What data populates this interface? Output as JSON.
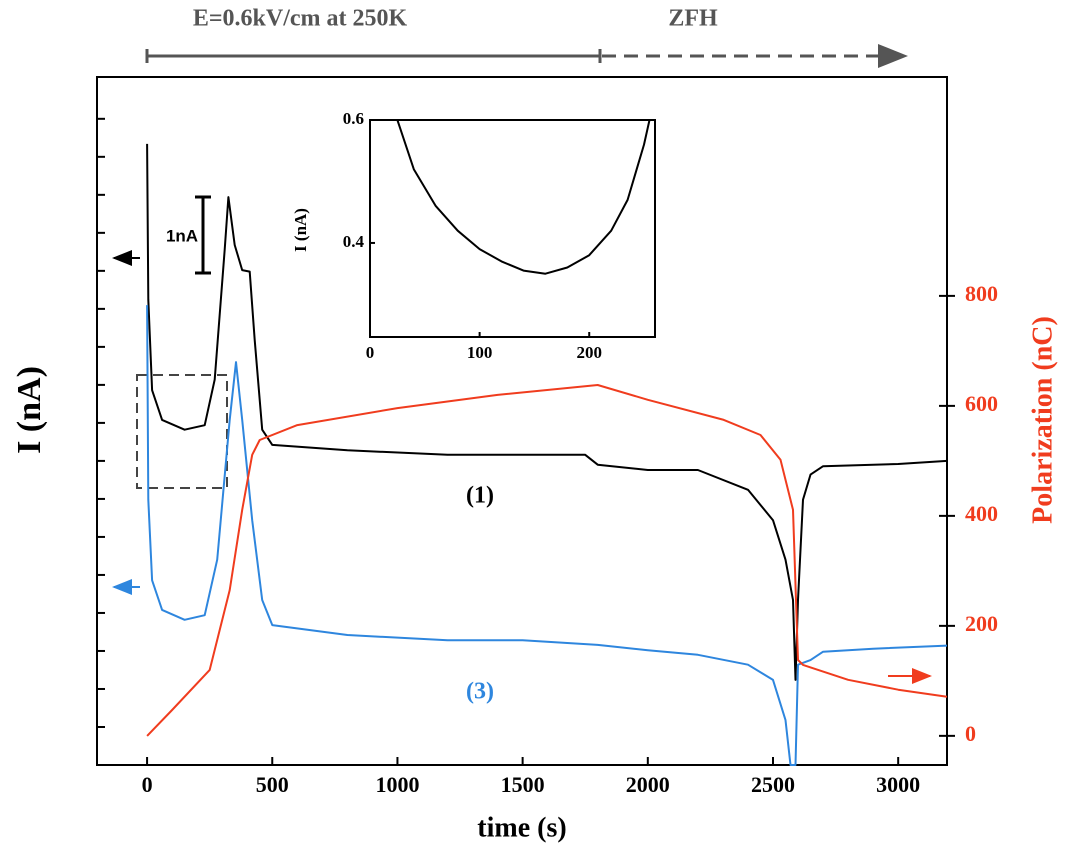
{
  "chart_data": [
    {
      "type": "line",
      "x_label": "time (s)",
      "y_label": "I (nA)",
      "y2_label": "Polarization (nC)",
      "annotations": [
        "E=0.6kV/cm at 250K",
        "ZFH",
        "1nA",
        "(1)",
        "(3)"
      ],
      "xlim": [
        -200,
        3195
      ],
      "xticks": [
        0,
        500,
        1000,
        1500,
        2000,
        2500,
        3000
      ],
      "ylim": [
        0,
        9.05
      ],
      "yticks": [
        0.5,
        1,
        1.5,
        2,
        2.5,
        3,
        3.5,
        4,
        4.5,
        5,
        5.5,
        6,
        6.5,
        7,
        7.5,
        8,
        8.5
      ],
      "y2lim": [
        -53,
        1198
      ],
      "y2ticks": [
        0,
        200,
        400,
        600,
        800
      ],
      "series": [
        {
          "name": "(1)",
          "color": "#000000",
          "axis": "y",
          "x": [
            0,
            5,
            20,
            60,
            150,
            230,
            270,
            310,
            325,
            350,
            380,
            410,
            430,
            460,
            500,
            800,
            1200,
            1500,
            1750,
            1800,
            2000,
            2200,
            2400,
            2500,
            2550,
            2580,
            2590,
            2600,
            2620,
            2650,
            2700,
            3000,
            3195
          ],
          "values": [
            8.17,
            6.12,
            4.93,
            4.54,
            4.41,
            4.47,
            5.07,
            6.78,
            7.47,
            6.84,
            6.51,
            6.49,
            5.59,
            4.41,
            4.21,
            4.14,
            4.08,
            4.08,
            4.08,
            3.95,
            3.88,
            3.88,
            3.62,
            3.22,
            2.7,
            2.17,
            1.12,
            2.17,
            3.49,
            3.82,
            3.93,
            3.96,
            4.0
          ]
        },
        {
          "name": "(3)",
          "color": "#2e86de",
          "axis": "y",
          "x": [
            0,
            5,
            20,
            60,
            150,
            230,
            280,
            330,
            355,
            380,
            420,
            460,
            500,
            800,
            1200,
            1500,
            1800,
            2000,
            2200,
            2400,
            2500,
            2550,
            2570,
            2590,
            2600,
            2650,
            2700,
            2900,
            3195
          ],
          "values": [
            6.05,
            3.49,
            2.43,
            2.04,
            1.91,
            1.97,
            2.7,
            4.54,
            5.3,
            4.54,
            3.22,
            2.17,
            1.84,
            1.71,
            1.64,
            1.64,
            1.58,
            1.51,
            1.45,
            1.32,
            1.12,
            0.59,
            0,
            0,
            1.32,
            1.38,
            1.49,
            1.53,
            1.57
          ]
        },
        {
          "name": "Polarization",
          "color": "#f03c1e",
          "axis": "y2",
          "x": [
            0,
            100,
            250,
            330,
            380,
            420,
            450,
            600,
            1000,
            1400,
            1800,
            2000,
            2300,
            2450,
            2530,
            2580,
            2600,
            2620,
            2800,
            3000,
            3195
          ],
          "values": [
            0,
            47,
            120,
            265,
            411,
            511,
            538,
            565,
            596,
            620,
            638,
            611,
            575,
            547,
            502,
            411,
            138,
            129,
            102,
            84,
            71
          ]
        }
      ]
    },
    {
      "type": "line",
      "y_label": "I (nA)",
      "xlim": [
        0,
        260
      ],
      "xticks": [
        0,
        100,
        200
      ],
      "ylim": [
        0.247,
        0.6
      ],
      "yticks": [
        0.4,
        0.6
      ],
      "series": [
        {
          "name": "inset",
          "color": "#000000",
          "axis": "y",
          "x": [
            25,
            40,
            60,
            80,
            100,
            120,
            140,
            160,
            180,
            200,
            220,
            235,
            250,
            255
          ],
          "values": [
            0.6,
            0.52,
            0.46,
            0.42,
            0.39,
            0.37,
            0.355,
            0.35,
            0.36,
            0.38,
            0.42,
            0.47,
            0.56,
            0.6
          ]
        }
      ]
    }
  ]
}
